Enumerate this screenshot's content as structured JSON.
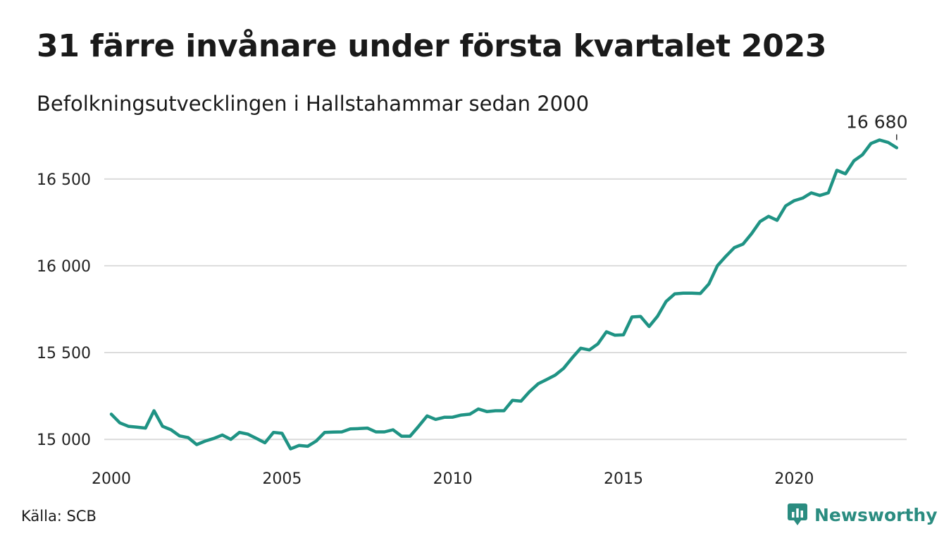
{
  "header": {
    "title": "31 färre invånare under första kvartalet 2023",
    "subtitle": "Befolkningsutvecklingen i Hallstahammar sedan 2000"
  },
  "footer": {
    "source": "Källa: SCB",
    "brand": "Newsworthy",
    "brand_color": "#2a8c80"
  },
  "chart_data": {
    "type": "line",
    "title": "31 färre invånare under första kvartalet 2023",
    "subtitle": "Befolkningsutvecklingen i Hallstahammar sedan 2000",
    "xlabel": "",
    "ylabel": "",
    "xlim": [
      2000,
      2023.5
    ],
    "ylim": [
      14850,
      16800
    ],
    "x_ticks": [
      2000,
      2005,
      2010,
      2015,
      2020
    ],
    "x_tick_labels": [
      "2000",
      "2005",
      "2010",
      "2015",
      "2020"
    ],
    "y_ticks": [
      15000,
      15500,
      16000,
      16500
    ],
    "y_tick_labels": [
      "15 000",
      "15 500",
      "16 000",
      "16 500"
    ],
    "grid": "horizontal",
    "line_color": "#1f9384",
    "annotation": {
      "label": "16 680",
      "x": 2023.0,
      "y": 16680
    },
    "series": [
      {
        "x": [
          2000.0,
          2000.25,
          2000.5,
          2000.75,
          2001.0,
          2001.25,
          2001.5,
          2001.75,
          2002.0,
          2002.25,
          2002.5,
          2002.75,
          2003.0,
          2003.25,
          2003.5,
          2003.75,
          2004.0,
          2004.25,
          2004.5,
          2004.75,
          2005.0,
          2005.25,
          2005.5,
          2005.75,
          2006.0,
          2006.25,
          2006.5,
          2006.75,
          2007.0,
          2007.25,
          2007.5,
          2007.75,
          2008.0,
          2008.25,
          2008.5,
          2008.75,
          2009.0,
          2009.25,
          2009.5,
          2009.75,
          2010.0,
          2010.25,
          2010.5,
          2010.75,
          2011.0,
          2011.25,
          2011.5,
          2011.75,
          2012.0,
          2012.25,
          2012.5,
          2012.75,
          2013.0,
          2013.25,
          2013.5,
          2013.75,
          2014.0,
          2014.25,
          2014.5,
          2014.75,
          2015.0,
          2015.25,
          2015.5,
          2015.75,
          2016.0,
          2016.25,
          2016.5,
          2016.75,
          2017.0,
          2017.25,
          2017.5,
          2017.75,
          2018.0,
          2018.25,
          2018.5,
          2018.75,
          2019.0,
          2019.25,
          2019.5,
          2019.75,
          2020.0,
          2020.25,
          2020.5,
          2020.75,
          2021.0,
          2021.25,
          2021.5,
          2021.75,
          2022.0,
          2022.25,
          2022.5,
          2022.75,
          2023.0
        ],
        "values": [
          15145,
          15095,
          15075,
          15070,
          15065,
          15165,
          15075,
          15055,
          15020,
          15010,
          14970,
          14990,
          15005,
          15025,
          15000,
          15040,
          15030,
          15005,
          14980,
          15040,
          15035,
          14945,
          14965,
          14960,
          14990,
          15040,
          15042,
          15043,
          15060,
          15062,
          15065,
          15043,
          15043,
          15055,
          15018,
          15018,
          15075,
          15135,
          15115,
          15127,
          15128,
          15140,
          15145,
          15175,
          15160,
          15165,
          15165,
          15225,
          15220,
          15275,
          15320,
          15345,
          15370,
          15410,
          15470,
          15525,
          15515,
          15550,
          15620,
          15600,
          15602,
          15705,
          15708,
          15650,
          15710,
          15795,
          15838,
          15842,
          15842,
          15840,
          15895,
          16000,
          16055,
          16105,
          16125,
          16185,
          16255,
          16285,
          16262,
          16345,
          16375,
          16390,
          16420,
          16405,
          16420,
          16550,
          16530,
          16605,
          16640,
          16705,
          16725,
          16711,
          16680
        ]
      }
    ]
  }
}
